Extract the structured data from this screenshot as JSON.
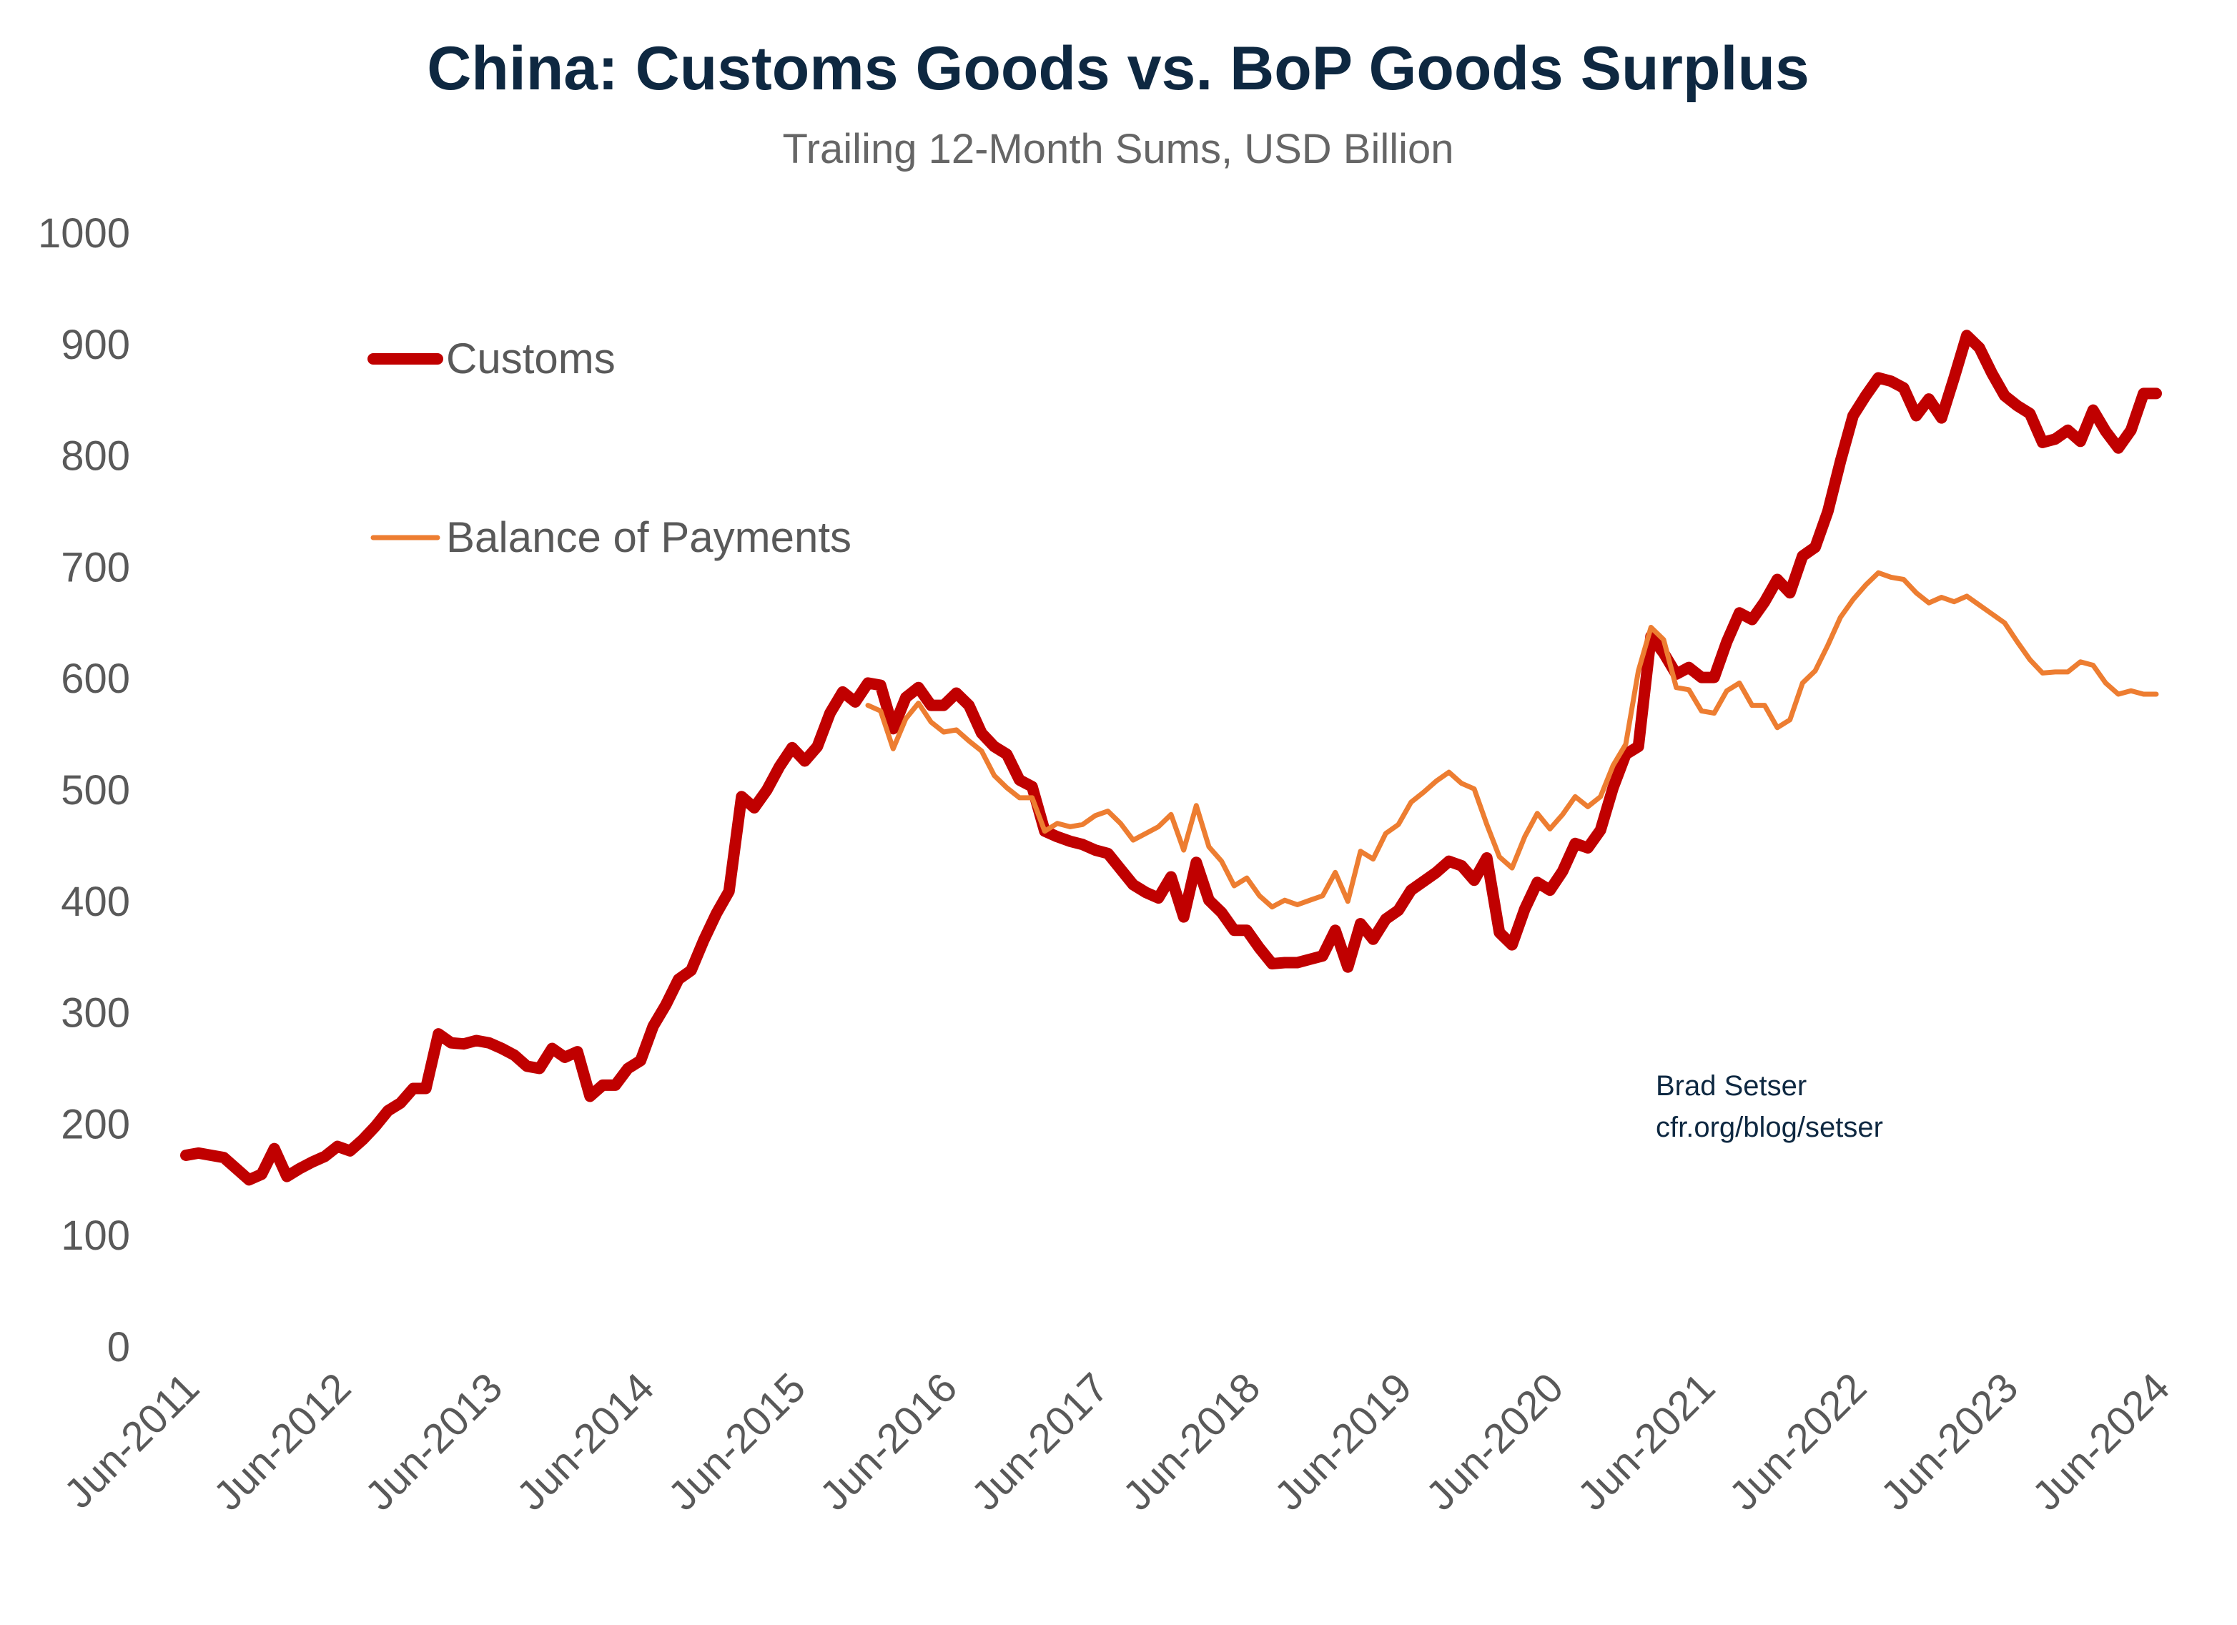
{
  "chart_data": {
    "type": "line",
    "title": "China: Customs Goods vs. BoP Goods Surplus",
    "subtitle": "Trailing 12-Month Sums, USD Billion",
    "xlabel": "",
    "ylabel": "",
    "ylim": [
      0,
      1000
    ],
    "yticks": [
      "0",
      "100",
      "200",
      "300",
      "400",
      "500",
      "600",
      "700",
      "800",
      "900",
      "1000"
    ],
    "xticks": [
      "Jun-2011",
      "Jun-2012",
      "Jun-2013",
      "Jun-2014",
      "Jun-2015",
      "Jun-2016",
      "Jun-2017",
      "Jun-2018",
      "Jun-2019",
      "Jun-2020",
      "Jun-2021",
      "Jun-2022",
      "Jun-2023",
      "Jun-2024"
    ],
    "grid": false,
    "legend_position": "top-left",
    "x": [
      "2011-06",
      "2011-07",
      "2011-08",
      "2011-09",
      "2011-10",
      "2011-11",
      "2011-12",
      "2012-01",
      "2012-02",
      "2012-03",
      "2012-04",
      "2012-05",
      "2012-06",
      "2012-07",
      "2012-08",
      "2012-09",
      "2012-10",
      "2012-11",
      "2012-12",
      "2013-01",
      "2013-02",
      "2013-03",
      "2013-04",
      "2013-05",
      "2013-06",
      "2013-07",
      "2013-08",
      "2013-09",
      "2013-10",
      "2013-11",
      "2013-12",
      "2014-01",
      "2014-02",
      "2014-03",
      "2014-04",
      "2014-05",
      "2014-06",
      "2014-07",
      "2014-08",
      "2014-09",
      "2014-10",
      "2014-11",
      "2014-12",
      "2015-01",
      "2015-02",
      "2015-03",
      "2015-04",
      "2015-05",
      "2015-06",
      "2015-07",
      "2015-08",
      "2015-09",
      "2015-10",
      "2015-11",
      "2015-12",
      "2016-01",
      "2016-02",
      "2016-03",
      "2016-04",
      "2016-05",
      "2016-06",
      "2016-07",
      "2016-08",
      "2016-09",
      "2016-10",
      "2016-11",
      "2016-12",
      "2017-01",
      "2017-02",
      "2017-03",
      "2017-04",
      "2017-05",
      "2017-06",
      "2017-07",
      "2017-08",
      "2017-09",
      "2017-10",
      "2017-11",
      "2017-12",
      "2018-01",
      "2018-02",
      "2018-03",
      "2018-04",
      "2018-05",
      "2018-06",
      "2018-07",
      "2018-08",
      "2018-09",
      "2018-10",
      "2018-11",
      "2018-12",
      "2019-01",
      "2019-02",
      "2019-03",
      "2019-04",
      "2019-05",
      "2019-06",
      "2019-07",
      "2019-08",
      "2019-09",
      "2019-10",
      "2019-11",
      "2019-12",
      "2020-01",
      "2020-02",
      "2020-03",
      "2020-04",
      "2020-05",
      "2020-06",
      "2020-07",
      "2020-08",
      "2020-09",
      "2020-10",
      "2020-11",
      "2020-12",
      "2021-01",
      "2021-02",
      "2021-03",
      "2021-04",
      "2021-05",
      "2021-06",
      "2021-07",
      "2021-08",
      "2021-09",
      "2021-10",
      "2021-11",
      "2021-12",
      "2022-01",
      "2022-02",
      "2022-03",
      "2022-04",
      "2022-05",
      "2022-06",
      "2022-07",
      "2022-08",
      "2022-09",
      "2022-10",
      "2022-11",
      "2022-12",
      "2023-01",
      "2023-02",
      "2023-03",
      "2023-04",
      "2023-05",
      "2023-06",
      "2023-07",
      "2023-08",
      "2023-09",
      "2023-10",
      "2023-11",
      "2023-12",
      "2024-01",
      "2024-02",
      "2024-03",
      "2024-04",
      "2024-05",
      "2024-06"
    ],
    "series": [
      {
        "name": "Customs",
        "color": "#C00000",
        "values": [
          172,
          174,
          172,
          170,
          160,
          150,
          155,
          178,
          153,
          160,
          166,
          171,
          180,
          176,
          186,
          198,
          212,
          219,
          232,
          232,
          281,
          273,
          272,
          275,
          273,
          268,
          262,
          252,
          250,
          268,
          260,
          265,
          225,
          235,
          235,
          250,
          257,
          288,
          307,
          330,
          338,
          365,
          389,
          409,
          494,
          484,
          500,
          521,
          538,
          526,
          539,
          569,
          588,
          579,
          596,
          594,
          555,
          583,
          592,
          576,
          576,
          587,
          576,
          551,
          539,
          532,
          509,
          503,
          463,
          458,
          454,
          451,
          446,
          443,
          429,
          415,
          408,
          403,
          422,
          386,
          435,
          401,
          390,
          374,
          374,
          358,
          344,
          345,
          345,
          348,
          351,
          374,
          341,
          380,
          366,
          384,
          392,
          410,
          418,
          426,
          436,
          432,
          419,
          439,
          372,
          361,
          393,
          417,
          410,
          427,
          452,
          448,
          464,
          502,
          532,
          539,
          638,
          623,
          604,
          610,
          601,
          601,
          633,
          659,
          653,
          669,
          689,
          677,
          710,
          718,
          750,
          795,
          836,
          854,
          870,
          867,
          861,
          836,
          851,
          834,
          870,
          908,
          897,
          874,
          854,
          845,
          838,
          812,
          815,
          823,
          813,
          841,
          822,
          807,
          823,
          856,
          856
        ]
      },
      {
        "name": "Balance of Payments",
        "color": "#ED7D31",
        "values": [
          null,
          null,
          null,
          null,
          null,
          null,
          null,
          null,
          null,
          null,
          null,
          null,
          null,
          null,
          null,
          null,
          null,
          null,
          null,
          null,
          null,
          null,
          null,
          null,
          null,
          null,
          null,
          null,
          null,
          null,
          null,
          null,
          null,
          null,
          null,
          null,
          null,
          null,
          null,
          null,
          null,
          null,
          null,
          null,
          null,
          null,
          null,
          null,
          null,
          null,
          null,
          null,
          null,
          null,
          576,
          571,
          537,
          564,
          578,
          561,
          552,
          554,
          544,
          535,
          513,
          502,
          493,
          493,
          463,
          470,
          467,
          469,
          477,
          481,
          470,
          455,
          461,
          467,
          478,
          446,
          486,
          449,
          436,
          414,
          421,
          405,
          395,
          401,
          397,
          401,
          405,
          426,
          400,
          445,
          438,
          461,
          469,
          489,
          498,
          508,
          516,
          506,
          501,
          469,
          440,
          430,
          458,
          479,
          465,
          478,
          494,
          485,
          494,
          522,
          541,
          607,
          646,
          635,
          592,
          590,
          571,
          569,
          589,
          596,
          576,
          576,
          556,
          563,
          596,
          607,
          630,
          655,
          671,
          684,
          695,
          691,
          689,
          677,
          668,
          673,
          669,
          674,
          666,
          658,
          650,
          633,
          617,
          605,
          606,
          606,
          615,
          612,
          596,
          586,
          589,
          586,
          586
        ]
      }
    ]
  },
  "credit": {
    "line1": "Brad Setser",
    "line2": "cfr.org/blog/setser"
  }
}
